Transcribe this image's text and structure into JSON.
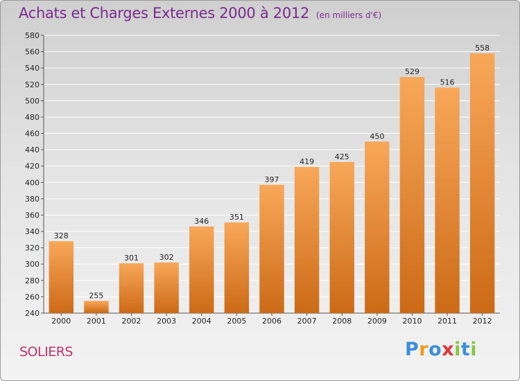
{
  "header": {
    "title": "Achats et Charges Externes 2000 à 2012",
    "subtitle": "(en milliers d'€)"
  },
  "location": "SOLIERS",
  "logo": {
    "text": "Proxiti",
    "letter_colors": [
      "#3a8fd8",
      "#f29a1f",
      "#3a8fd8",
      "#e0363a",
      "#8cc63f",
      "#3a8fd8",
      "#8cc63f"
    ]
  },
  "colors": {
    "bar_light": "#f8a859",
    "bar_dark": "#cc6a16",
    "title": "#7a2b8e",
    "location": "#c0326b"
  },
  "chart_data": {
    "type": "bar",
    "categories": [
      "2000",
      "2001",
      "2002",
      "2003",
      "2004",
      "2005",
      "2006",
      "2007",
      "2008",
      "2009",
      "2010",
      "2011",
      "2012"
    ],
    "values": [
      328,
      255,
      301,
      302,
      346,
      351,
      397,
      419,
      425,
      450,
      529,
      516,
      558
    ],
    "title": "Achats et Charges Externes 2000 à 2012",
    "xlabel": "",
    "ylabel": "",
    "ylim": [
      240,
      580
    ],
    "yticks": [
      240,
      260,
      280,
      300,
      320,
      340,
      360,
      380,
      400,
      420,
      440,
      460,
      480,
      500,
      520,
      540,
      560,
      580
    ],
    "grid": true,
    "data_labels": true
  }
}
